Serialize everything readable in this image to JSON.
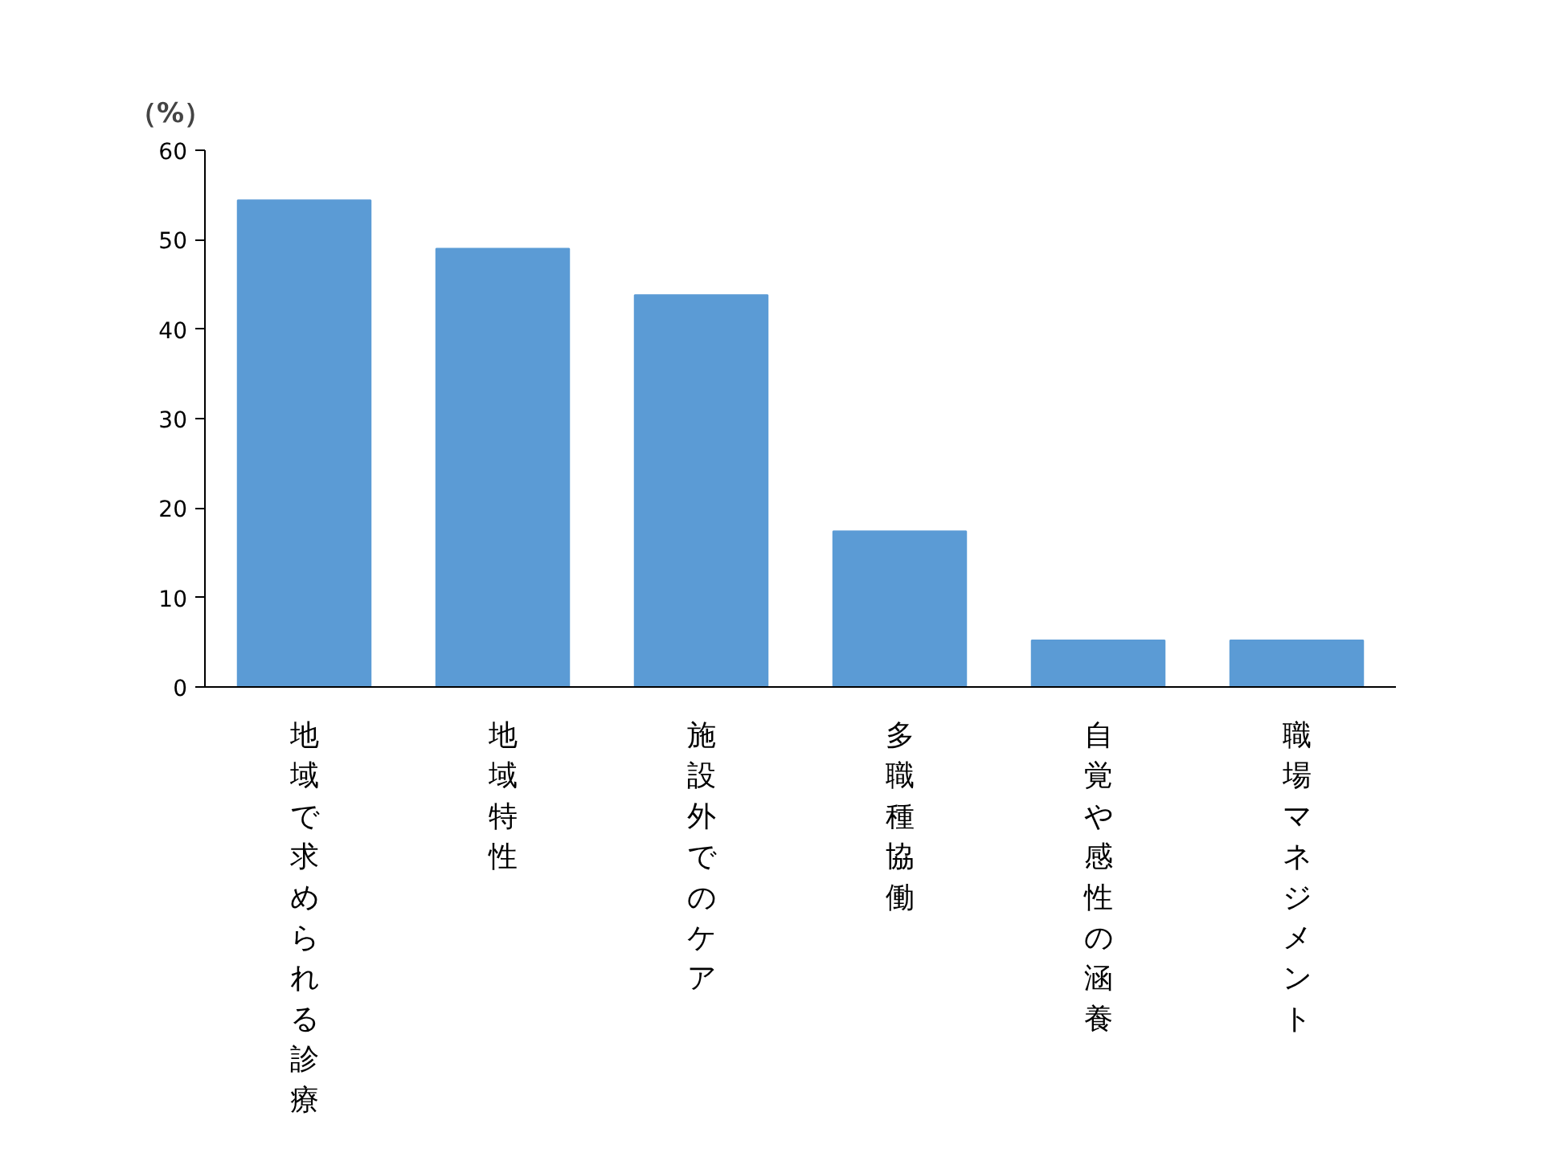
{
  "chart_data": {
    "type": "bar",
    "ylabel": "（%）",
    "categories": [
      "地域で求められる診療",
      "地域特性",
      "施設外でのケア",
      "多職種協働",
      "自覚や感性の涵養",
      "職場マネジメント"
    ],
    "values": [
      54.4,
      49.0,
      43.8,
      17.4,
      5.2,
      5.2
    ],
    "color": "#5b9bd5",
    "ylim": [
      0,
      60
    ],
    "yticks": [
      0,
      10,
      20,
      30,
      40,
      50,
      60
    ],
    "grid": false
  }
}
